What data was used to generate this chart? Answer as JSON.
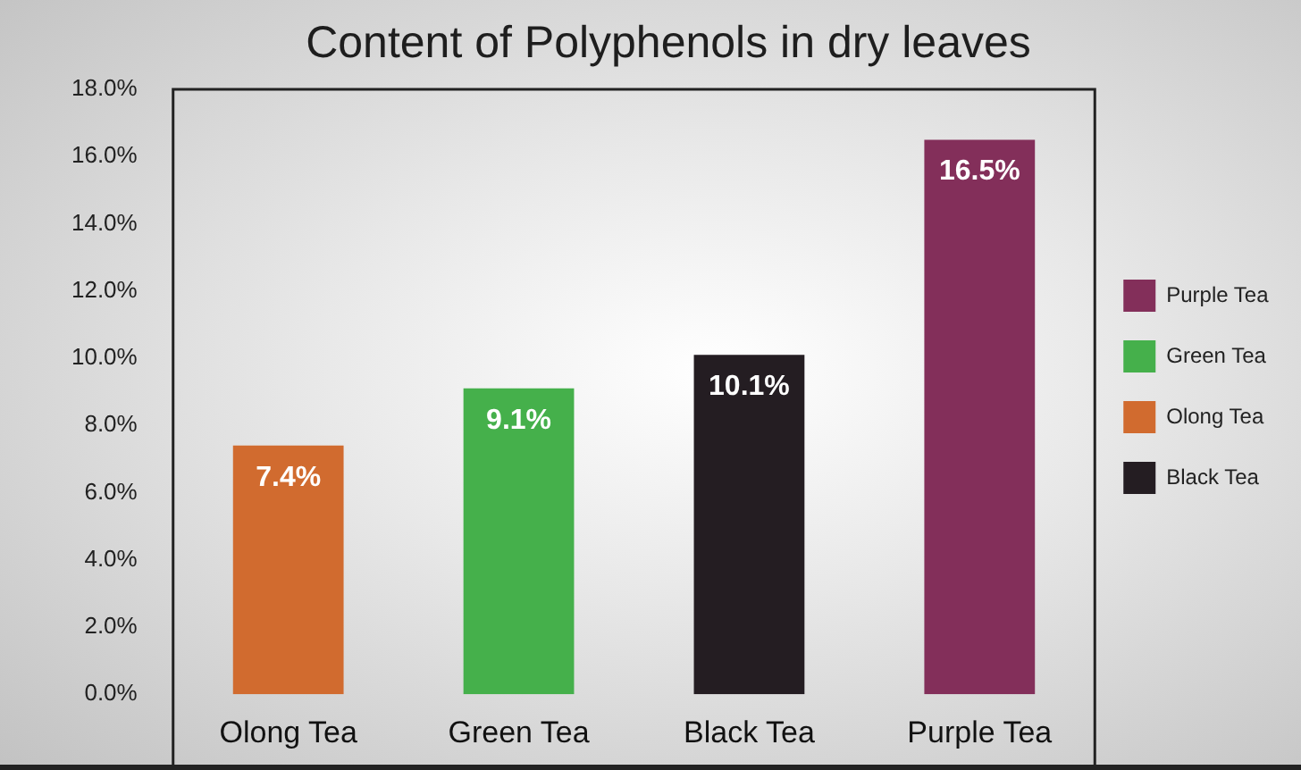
{
  "chart_data": {
    "type": "bar",
    "title": "Content of Polyphenols in dry leaves",
    "categories": [
      "Olong Tea",
      "Green Tea",
      "Black Tea",
      "Purple Tea"
    ],
    "series": [
      {
        "name": "Purple Tea",
        "color": "#832f5a",
        "values": [
          null,
          null,
          null,
          16.5
        ],
        "value_labels": [
          null,
          null,
          null,
          "16.5%"
        ]
      },
      {
        "name": "Green Tea",
        "color": "#45b04b",
        "values": [
          null,
          9.1,
          null,
          null
        ],
        "value_labels": [
          null,
          "9.1%",
          null,
          null
        ]
      },
      {
        "name": "Olong Tea",
        "color": "#d16b2f",
        "values": [
          7.4,
          null,
          null,
          null
        ],
        "value_labels": [
          "7.4%",
          null,
          null,
          null
        ]
      },
      {
        "name": "Black Tea",
        "color": "#241d22",
        "values": [
          null,
          null,
          10.1,
          null
        ],
        "value_labels": [
          null,
          null,
          "10.1%",
          null
        ]
      }
    ],
    "ylim": [
      0,
      18
    ],
    "yticks": [
      {
        "value": 0,
        "label": "0.0%"
      },
      {
        "value": 2,
        "label": "2.0%"
      },
      {
        "value": 4,
        "label": "4.0%"
      },
      {
        "value": 6,
        "label": "6.0%"
      },
      {
        "value": 8,
        "label": "8.0%"
      },
      {
        "value": 10,
        "label": "10.0%"
      },
      {
        "value": 12,
        "label": "12.0%"
      },
      {
        "value": 14,
        "label": "14.0%"
      },
      {
        "value": 16,
        "label": "16.0%"
      },
      {
        "value": 18,
        "label": "18.0%"
      }
    ],
    "grid": false,
    "legend": "right"
  }
}
